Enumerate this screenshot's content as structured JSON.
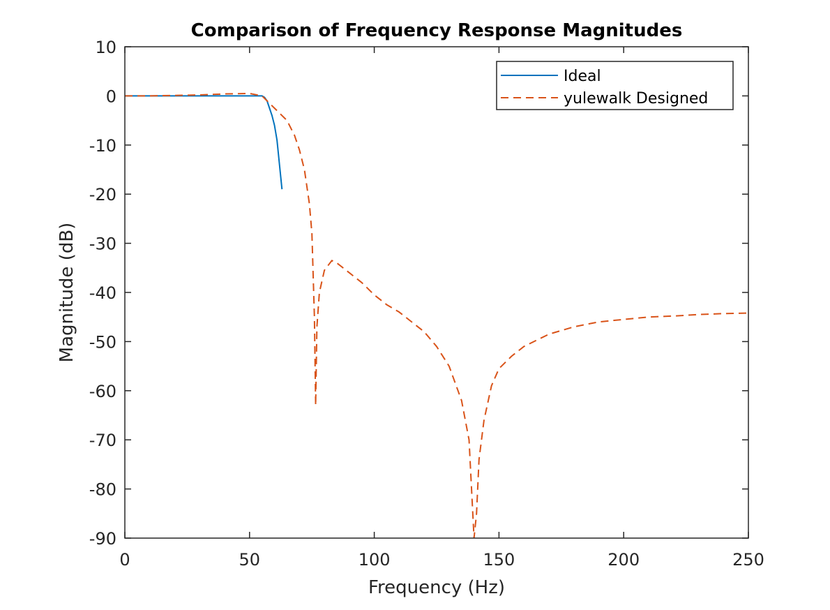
{
  "chart_data": {
    "type": "line",
    "title": "Comparison of Frequency Response Magnitudes",
    "xlabel": "Frequency (Hz)",
    "ylabel": "Magnitude (dB)",
    "xlim": [
      0,
      250
    ],
    "ylim": [
      -90,
      10
    ],
    "xticks": [
      0,
      50,
      100,
      150,
      200,
      250
    ],
    "yticks": [
      10,
      0,
      -10,
      -20,
      -30,
      -40,
      -50,
      -60,
      -70,
      -80,
      -90
    ],
    "grid": false,
    "legend_position": "top-right",
    "series": [
      {
        "name": "Ideal",
        "color": "#0072BD",
        "style": "solid",
        "points": [
          [
            0,
            0
          ],
          [
            10,
            0
          ],
          [
            20,
            0
          ],
          [
            30,
            0
          ],
          [
            40,
            0
          ],
          [
            50,
            0
          ],
          [
            55,
            0
          ],
          [
            56,
            -0.3
          ],
          [
            57,
            -1
          ],
          [
            58,
            -2.5
          ],
          [
            59,
            -4
          ],
          [
            60,
            -6
          ],
          [
            61,
            -9
          ],
          [
            62,
            -14
          ],
          [
            63,
            -19
          ]
        ]
      },
      {
        "name": "yulewalk Designed",
        "color": "#D95319",
        "style": "dashed",
        "points": [
          [
            0,
            0
          ],
          [
            10,
            0
          ],
          [
            20,
            0.1
          ],
          [
            30,
            0.2
          ],
          [
            40,
            0.4
          ],
          [
            50,
            0.5
          ],
          [
            55,
            0
          ],
          [
            58,
            -1.5
          ],
          [
            60,
            -2.5
          ],
          [
            62,
            -3.5
          ],
          [
            65,
            -5
          ],
          [
            68,
            -8
          ],
          [
            70,
            -11
          ],
          [
            72,
            -15
          ],
          [
            74,
            -22
          ],
          [
            75,
            -28
          ],
          [
            76,
            -45
          ],
          [
            76.5,
            -63
          ],
          [
            77,
            -47
          ],
          [
            78,
            -40
          ],
          [
            80,
            -35.5
          ],
          [
            83,
            -33.5
          ],
          [
            85,
            -34
          ],
          [
            90,
            -36
          ],
          [
            95,
            -38
          ],
          [
            100,
            -40.5
          ],
          [
            105,
            -42.5
          ],
          [
            110,
            -44
          ],
          [
            115,
            -46
          ],
          [
            120,
            -48
          ],
          [
            125,
            -51
          ],
          [
            130,
            -55
          ],
          [
            135,
            -62
          ],
          [
            138,
            -70
          ],
          [
            140,
            -90
          ],
          [
            141,
            -85
          ],
          [
            142,
            -74
          ],
          [
            144,
            -66
          ],
          [
            147,
            -59
          ],
          [
            150,
            -55.5
          ],
          [
            155,
            -53
          ],
          [
            160,
            -51
          ],
          [
            170,
            -48.5
          ],
          [
            180,
            -47
          ],
          [
            190,
            -46
          ],
          [
            200,
            -45.5
          ],
          [
            210,
            -45
          ],
          [
            220,
            -44.8
          ],
          [
            230,
            -44.5
          ],
          [
            240,
            -44.3
          ],
          [
            250,
            -44.2
          ]
        ]
      }
    ]
  }
}
